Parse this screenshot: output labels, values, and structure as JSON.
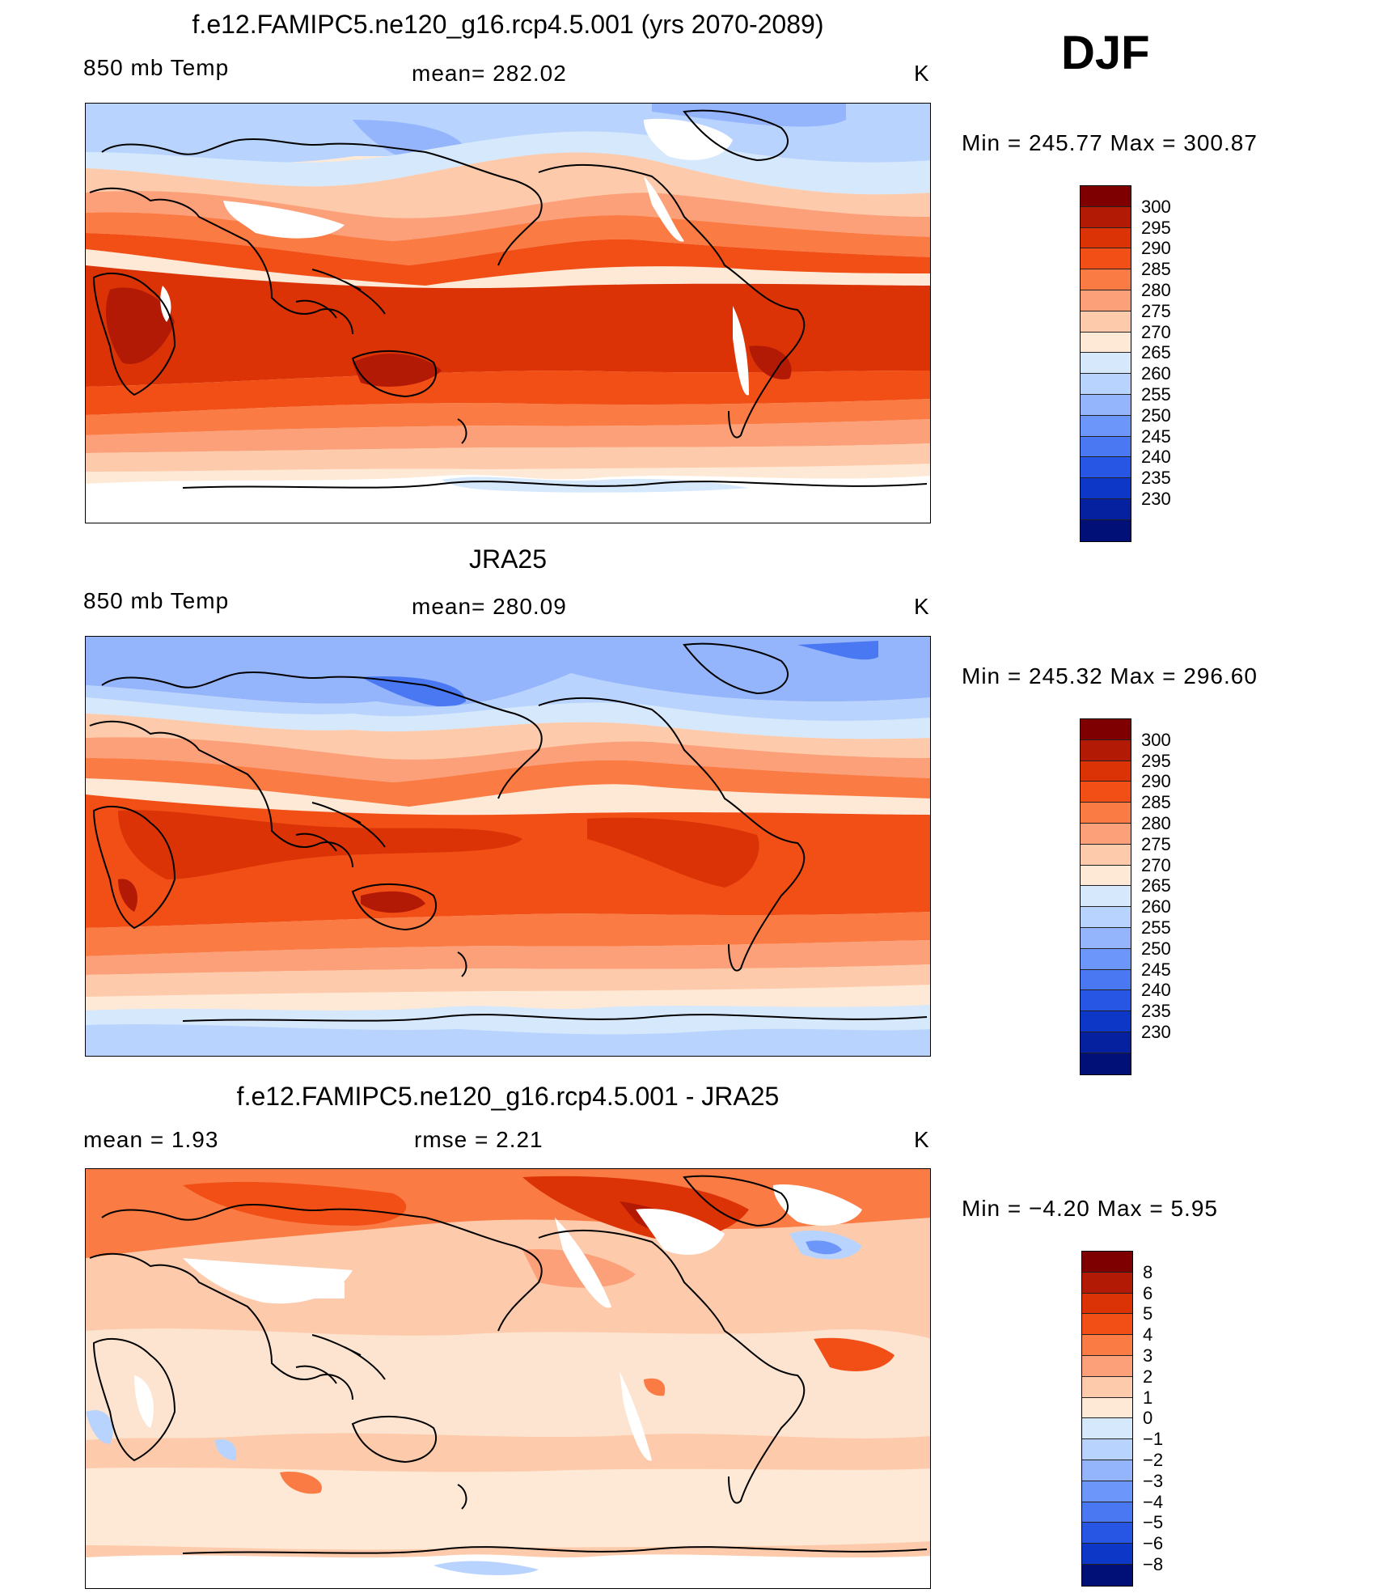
{
  "season": "DJF",
  "panels": [
    {
      "title": "f.e12.FAMIPC5.ne120_g16.rcp4.5.001 (yrs 2070-2089)",
      "left": "850 mb Temp",
      "center": "mean=  282.02",
      "right": "K",
      "minmax": "Min  =  245.77  Max  =  300.87",
      "kind": "abs"
    },
    {
      "title": "JRA25",
      "left": "850 mb Temp",
      "center": "mean=  280.09",
      "right": "K",
      "minmax": "Min  =  245.32  Max  =  296.60",
      "kind": "abs"
    },
    {
      "title": "f.e12.FAMIPC5.ne120_g16.rcp4.5.001 - JRA25",
      "left": "mean  =      1.93",
      "center": "rmse  =      2.21",
      "right": "K",
      "minmax": "Min  =    −4.20  Max  =      5.95",
      "kind": "diff"
    }
  ],
  "colorbars": {
    "abs": {
      "colors": [
        "#7f0000",
        "#b31a06",
        "#db3306",
        "#f24f17",
        "#fb7b45",
        "#fca07a",
        "#fdcbab",
        "#fde9d6",
        "#d6e8fc",
        "#b8d3fd",
        "#94b5fc",
        "#6d96fa",
        "#4a78f2",
        "#2856e4",
        "#0c37c7",
        "#0621a0",
        "#001077"
      ],
      "labels": [
        "300",
        "295",
        "290",
        "285",
        "280",
        "275",
        "270",
        "265",
        "260",
        "255",
        "250",
        "245",
        "240",
        "235",
        "230"
      ]
    },
    "diff": {
      "colors": [
        "#7f0000",
        "#b31a06",
        "#db3306",
        "#f24f17",
        "#fb7b45",
        "#fca07a",
        "#fdcbab",
        "#fde9d6",
        "#d6e8fc",
        "#b8d3fd",
        "#94b5fc",
        "#6d96fa",
        "#4a78f2",
        "#2856e4",
        "#0c37c7",
        "#001077"
      ],
      "labels": [
        "8",
        "6",
        "5",
        "4",
        "3",
        "2",
        "1",
        "0",
        "−1",
        "−2",
        "−3",
        "−4",
        "−5",
        "−6",
        "−8"
      ]
    }
  }
}
